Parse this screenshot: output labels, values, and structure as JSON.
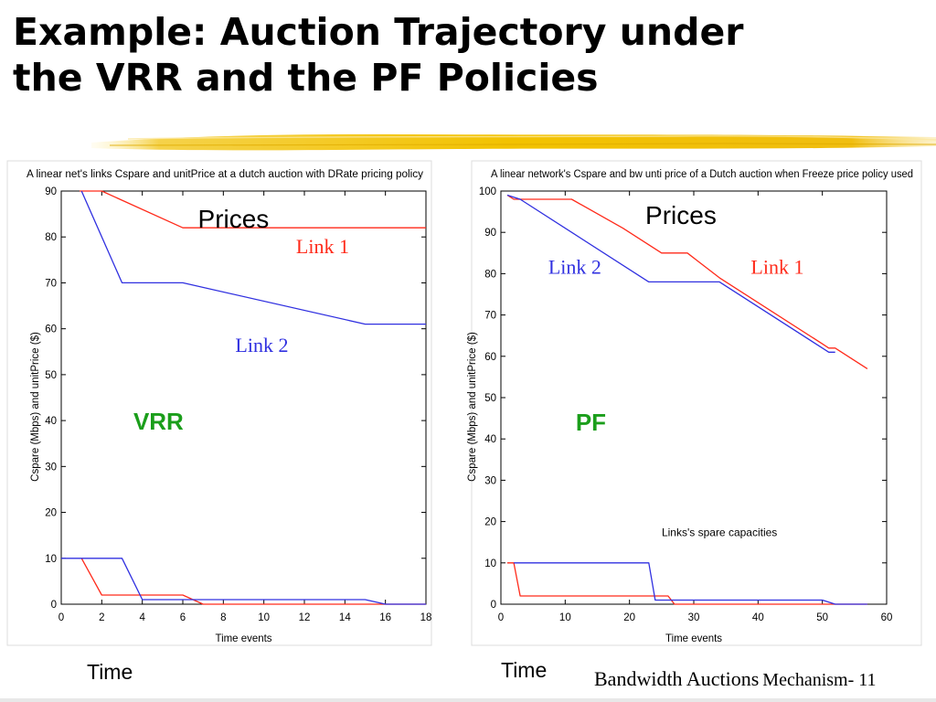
{
  "slide": {
    "title_line1": "Example: Auction Trajectory under",
    "title_line2": "the VRR and the PF Policies",
    "footer_main": "Bandwidth Auctions",
    "footer_sub": "Mechanism- 11",
    "accent_color": "#f2c200"
  },
  "chart_data": [
    {
      "type": "line",
      "title": "A linear net's links Cspare and unitPrice at a dutch auction with DRate pricing policy",
      "xlabel": "Time events",
      "ylabel": "Cspare (Mbps)   and  unitPrice ($)",
      "xlim": [
        0,
        18
      ],
      "ylim": [
        0,
        90
      ],
      "xticks": [
        0,
        2,
        4,
        6,
        8,
        10,
        12,
        14,
        16,
        18
      ],
      "yticks": [
        0,
        10,
        20,
        30,
        40,
        50,
        60,
        70,
        80,
        90
      ],
      "grid": false,
      "series": [
        {
          "color": "#ff2a1a",
          "x": [
            0.9,
            2,
            6,
            18
          ],
          "y": [
            90,
            90,
            82,
            82
          ]
        },
        {
          "color": "#3030e0",
          "x": [
            1,
            3,
            6,
            15,
            18
          ],
          "y": [
            90,
            70,
            70,
            61,
            61
          ]
        },
        {
          "color": "#ff2a1a",
          "x": [
            1,
            2,
            6,
            7,
            18
          ],
          "y": [
            10,
            2,
            2,
            0,
            0
          ]
        },
        {
          "color": "#3030e0",
          "x": [
            0,
            3,
            4,
            15,
            16,
            18
          ],
          "y": [
            10,
            10,
            1,
            1,
            0,
            0
          ]
        }
      ],
      "annotations": [
        {
          "text": "Prices",
          "x": 8.5,
          "y": 82,
          "color": "#000000",
          "font": "sans",
          "size": 28
        },
        {
          "text": "Link 1",
          "x": 12.9,
          "y": 76.5,
          "color": "#ff2a1a",
          "font": "serif",
          "size": 22
        },
        {
          "text": "Link 2",
          "x": 9.9,
          "y": 55,
          "color": "#3030e0",
          "font": "serif",
          "size": 22
        },
        {
          "text": "VRR",
          "x": 4.8,
          "y": 38,
          "color": "#1b9e1b",
          "font": "sans-bold",
          "size": 26
        }
      ],
      "footer_label": "Time"
    },
    {
      "type": "line",
      "title": "A linear network's Cspare and bw unti price of a Dutch auction when Freeze price policy used",
      "xlabel": "Time events",
      "ylabel": "Cspare (Mbps)   and unitPrice ($)",
      "xlim": [
        0,
        60
      ],
      "ylim": [
        0,
        100
      ],
      "xticks": [
        0,
        10,
        20,
        30,
        40,
        50,
        60
      ],
      "yticks": [
        0,
        10,
        20,
        30,
        40,
        50,
        60,
        70,
        80,
        90,
        100
      ],
      "grid": false,
      "series": [
        {
          "color": "#ff2a1a",
          "x": [
            1,
            2,
            11,
            19,
            23,
            24,
            25,
            29,
            34,
            50,
            51,
            52,
            57
          ],
          "y": [
            99,
            98,
            98,
            91,
            87,
            86,
            85,
            85,
            79,
            63,
            62,
            62,
            57
          ]
        },
        {
          "color": "#3030e0",
          "x": [
            1,
            3,
            23,
            34,
            51,
            52
          ],
          "y": [
            99,
            98,
            78,
            78,
            61,
            61
          ]
        },
        {
          "color": "#ff2a1a",
          "x": [
            1,
            2,
            3,
            26,
            27,
            57
          ],
          "y": [
            10,
            10,
            2,
            2,
            0,
            0
          ]
        },
        {
          "color": "#3030e0",
          "x": [
            2,
            23,
            24,
            50,
            52,
            57
          ],
          "y": [
            10,
            10,
            1,
            1,
            0,
            0
          ]
        }
      ],
      "annotations": [
        {
          "text": "Prices",
          "x": 28,
          "y": 92,
          "color": "#000000",
          "font": "sans",
          "size": 28
        },
        {
          "text": "Link 2",
          "x": 11.5,
          "y": 80,
          "color": "#3030e0",
          "font": "serif",
          "size": 22
        },
        {
          "text": "Link 1",
          "x": 43,
          "y": 80,
          "color": "#ff2a1a",
          "font": "serif",
          "size": 22
        },
        {
          "text": "PF",
          "x": 14,
          "y": 42,
          "color": "#1b9e1b",
          "font": "sans-bold",
          "size": 26
        },
        {
          "text": "Links's spare capacities",
          "x": 34,
          "y": 16.5,
          "color": "#000000",
          "font": "small",
          "size": 12
        }
      ],
      "footer_label": "Time"
    }
  ]
}
